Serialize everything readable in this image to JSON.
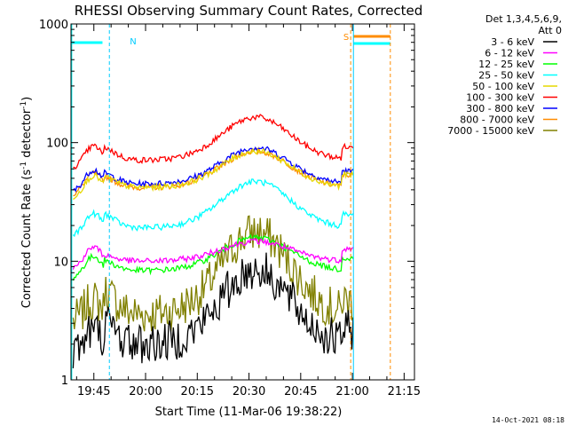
{
  "chart_data": {
    "type": "line",
    "title": "RHESSI Observing Summary Count Rates, Corrected",
    "xlabel": "Start Time (11-Mar-06 19:38:22)",
    "ylabel": "Corrected Count Rate (s",
    "ylabel_sup1": "-1",
    "ylabel_mid": " detector",
    "ylabel_sup2": "-1",
    "ylabel_end": ")",
    "y_scale": "log",
    "ylim": [
      1,
      1000
    ],
    "xlim": [
      "19:38:22",
      "21:18:00"
    ],
    "y_tick_labels": [
      "1",
      "10",
      "100",
      "1000"
    ],
    "y_tick_values": [
      1,
      10,
      100,
      1000
    ],
    "x_tick_labels": [
      "19:45",
      "20:00",
      "20:15",
      "20:30",
      "20:45",
      "21:00",
      "21:15"
    ],
    "x_tick_minutes": [
      405,
      420,
      435,
      450,
      465,
      480,
      495
    ],
    "legend": {
      "placement": "right",
      "header1": "Det 1,3,4,5,6,9,",
      "header2": "Att 0"
    },
    "series": [
      {
        "name": "3 - 6 keV",
        "color": "#000000"
      },
      {
        "name": "6 - 12 keV",
        "color": "#ff00ff"
      },
      {
        "name": "12 - 25 keV",
        "color": "#00ff00"
      },
      {
        "name": "25 - 50 keV",
        "color": "#00ffff"
      },
      {
        "name": "50 - 100 keV",
        "color": "#e6d800"
      },
      {
        "name": "100 - 300 keV",
        "color": "#ff0000"
      },
      {
        "name": "300 - 800 keV",
        "color": "#0000ff"
      },
      {
        "name": "800 - 7000 keV",
        "color": "#ff8c00"
      },
      {
        "name": "7000 - 15000 keV",
        "color": "#808000"
      }
    ],
    "annotations": {
      "n_label": "N",
      "s_label": "S"
    },
    "timestamp": "14-Oct-2021 08:18"
  }
}
